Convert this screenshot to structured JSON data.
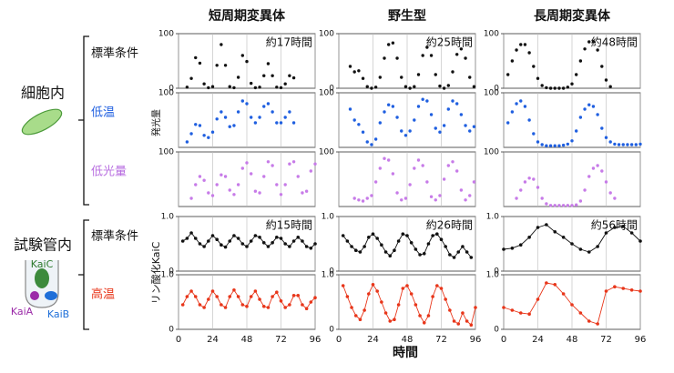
{
  "headers": [
    "短周期変異体",
    "野生型",
    "長周期変異体"
  ],
  "row_groups": [
    {
      "label": "細胞内",
      "rows": [
        "標準条件",
        "低温",
        "低光量"
      ]
    },
    {
      "label": "試験管内",
      "rows": [
        "標準条件",
        "高温"
      ]
    }
  ],
  "icon_labels": [
    "KaiC",
    "KaiA",
    "KaiB"
  ],
  "ylabels": [
    "発光量",
    "リン酸化KaiC"
  ],
  "xlabel": "時間",
  "chart_data": [
    {
      "type": "scatter",
      "color": "#111111",
      "annotation": "約17時間",
      "xlim": [
        0,
        96
      ],
      "xticks": [
        0,
        24,
        48,
        72,
        96
      ],
      "ylim": [
        0,
        100
      ],
      "yticks": [
        0,
        100
      ],
      "x": [
        6,
        9,
        12,
        15,
        18,
        21,
        24,
        27,
        30,
        33,
        36,
        39,
        42,
        45,
        48,
        51,
        54,
        57,
        60,
        63,
        66,
        69,
        72,
        75,
        78,
        81
      ],
      "values": [
        2,
        18,
        56,
        46,
        8,
        1,
        3,
        42,
        80,
        42,
        3,
        1,
        20,
        60,
        49,
        9,
        1,
        2,
        23,
        45,
        23,
        2,
        1,
        8,
        23,
        19
      ]
    },
    {
      "type": "scatter",
      "color": "#111111",
      "annotation": "約25時間",
      "xlim": [
        0,
        96
      ],
      "xticks": [
        0,
        24,
        48,
        72,
        96
      ],
      "ylim": [
        0,
        100
      ],
      "yticks": [
        0,
        100
      ],
      "x": [
        8,
        11,
        14,
        17,
        20,
        23,
        26,
        29,
        32,
        35,
        38,
        41,
        44,
        47,
        50,
        53,
        56,
        59,
        62,
        65,
        68,
        71,
        74,
        77,
        80,
        83,
        86,
        89,
        92,
        95
      ],
      "values": [
        40,
        30,
        32,
        18,
        3,
        0,
        2,
        20,
        55,
        80,
        83,
        55,
        20,
        3,
        0,
        3,
        25,
        60,
        75,
        60,
        25,
        4,
        0,
        5,
        30,
        62,
        72,
        55,
        20,
        3
      ]
    },
    {
      "type": "scatter",
      "color": "#111111",
      "annotation": "約48時間",
      "xlim": [
        0,
        96
      ],
      "xticks": [
        0,
        24,
        48,
        72,
        96
      ],
      "ylim": [
        0,
        100
      ],
      "yticks": [
        0,
        100
      ],
      "x": [
        3,
        6,
        9,
        12,
        15,
        18,
        21,
        24,
        27,
        30,
        33,
        36,
        39,
        42,
        45,
        48,
        51,
        54,
        57,
        60,
        63,
        66,
        69,
        72,
        75
      ],
      "values": [
        25,
        50,
        70,
        80,
        80,
        65,
        40,
        18,
        5,
        1,
        0,
        0,
        0,
        0,
        2,
        8,
        25,
        50,
        72,
        85,
        85,
        70,
        40,
        15,
        3
      ]
    },
    {
      "type": "scatter",
      "color": "#1f5fe0",
      "xlim": [
        0,
        96
      ],
      "xticks": [
        0,
        24,
        48,
        72,
        96
      ],
      "ylim": [
        0,
        100
      ],
      "yticks": [
        100
      ],
      "x": [
        6,
        9,
        12,
        15,
        18,
        21,
        24,
        27,
        30,
        33,
        36,
        39,
        42,
        45,
        48,
        51,
        54,
        57,
        60,
        63,
        66,
        69,
        72,
        75,
        78,
        81
      ],
      "values": [
        10,
        25,
        42,
        40,
        22,
        18,
        28,
        52,
        65,
        55,
        38,
        40,
        65,
        85,
        80,
        55,
        45,
        55,
        75,
        80,
        65,
        45,
        45,
        55,
        65,
        45
      ]
    },
    {
      "type": "scatter",
      "color": "#1f5fe0",
      "xlim": [
        0,
        96
      ],
      "xticks": [
        0,
        24,
        48,
        72,
        96
      ],
      "ylim": [
        0,
        100
      ],
      "yticks": [
        100
      ],
      "x": [
        8,
        11,
        14,
        17,
        20,
        23,
        26,
        29,
        32,
        35,
        38,
        41,
        44,
        47,
        50,
        53,
        56,
        59,
        62,
        65,
        68,
        71,
        74,
        77,
        80,
        83,
        86,
        89,
        92,
        95
      ],
      "values": [
        70,
        50,
        42,
        28,
        10,
        5,
        15,
        45,
        65,
        78,
        75,
        55,
        30,
        22,
        30,
        50,
        75,
        88,
        85,
        60,
        35,
        28,
        40,
        70,
        85,
        80,
        60,
        40,
        30,
        38
      ]
    },
    {
      "type": "scatter",
      "color": "#1f5fe0",
      "xlim": [
        0,
        96
      ],
      "xticks": [
        0,
        24,
        48,
        72,
        96
      ],
      "ylim": [
        0,
        100
      ],
      "yticks": [
        100
      ],
      "x": [
        3,
        6,
        9,
        12,
        15,
        18,
        21,
        24,
        27,
        30,
        33,
        36,
        39,
        42,
        45,
        48,
        51,
        54,
        57,
        60,
        63,
        66,
        69,
        72,
        75,
        78,
        81,
        84,
        87,
        90,
        93,
        96
      ],
      "values": [
        45,
        65,
        80,
        85,
        75,
        50,
        25,
        10,
        5,
        3,
        3,
        3,
        3,
        4,
        6,
        12,
        30,
        55,
        70,
        78,
        75,
        60,
        35,
        18,
        10,
        6,
        5,
        5,
        5,
        5,
        5,
        6
      ]
    },
    {
      "type": "scatter",
      "color": "#c77be8",
      "xlim": [
        0,
        96
      ],
      "xticks": [
        0,
        24,
        48,
        72,
        96
      ],
      "ylim": [
        0,
        100
      ],
      "yticks": [
        100
      ],
      "x": [
        9,
        12,
        15,
        18,
        21,
        24,
        27,
        30,
        33,
        36,
        39,
        42,
        45,
        48,
        51,
        54,
        57,
        60,
        63,
        66,
        69,
        72,
        75,
        78,
        81,
        84,
        87,
        90,
        93,
        96
      ],
      "values": [
        15,
        40,
        55,
        48,
        25,
        20,
        40,
        58,
        55,
        30,
        22,
        40,
        70,
        80,
        60,
        28,
        25,
        55,
        82,
        75,
        40,
        22,
        40,
        78,
        82,
        55,
        25,
        28,
        65,
        78
      ]
    },
    {
      "type": "scatter",
      "color": "#c77be8",
      "xlim": [
        0,
        96
      ],
      "xticks": [
        0,
        24,
        48,
        72,
        96
      ],
      "ylim": [
        0,
        100
      ],
      "yticks": [
        100
      ],
      "x": [
        11,
        14,
        17,
        20,
        23,
        26,
        29,
        32,
        35,
        38,
        41,
        44,
        47,
        50,
        53,
        56,
        59,
        62,
        65,
        68,
        71,
        74,
        77,
        80,
        83,
        86,
        89,
        92,
        95
      ],
      "values": [
        15,
        12,
        10,
        15,
        20,
        45,
        70,
        88,
        85,
        60,
        25,
        12,
        15,
        40,
        70,
        85,
        75,
        45,
        18,
        12,
        20,
        50,
        75,
        82,
        65,
        30,
        12,
        20,
        45
      ]
    },
    {
      "type": "scatter",
      "color": "#c77be8",
      "xlim": [
        0,
        96
      ],
      "xticks": [
        0,
        24,
        48,
        72,
        96
      ],
      "ylim": [
        0,
        100
      ],
      "yticks": [
        100
      ],
      "x": [
        9,
        12,
        15,
        18,
        21,
        24,
        27,
        30,
        33,
        36,
        39,
        42,
        45,
        48,
        51,
        54,
        57,
        60,
        63,
        66,
        69,
        72,
        75,
        78
      ],
      "values": [
        15,
        30,
        45,
        52,
        50,
        35,
        15,
        5,
        2,
        2,
        2,
        2,
        2,
        2,
        3,
        10,
        30,
        55,
        70,
        75,
        65,
        45,
        25,
        15
      ]
    },
    {
      "type": "line",
      "color": "#111111",
      "annotation": "約15時間",
      "xlim": [
        0,
        96
      ],
      "xticks": [
        0,
        24,
        48,
        72,
        96
      ],
      "ylim": [
        0,
        1
      ],
      "yticks": [
        0,
        {
          "value": 1,
          "label": "1.0"
        }
      ],
      "x": [
        3,
        6,
        9,
        12,
        15,
        18,
        21,
        24,
        27,
        30,
        33,
        36,
        39,
        42,
        45,
        48,
        51,
        54,
        57,
        60,
        63,
        66,
        69,
        72,
        75,
        78,
        81,
        84,
        87,
        90,
        93,
        96
      ],
      "values": [
        0.55,
        0.6,
        0.7,
        0.6,
        0.5,
        0.45,
        0.55,
        0.65,
        0.58,
        0.48,
        0.44,
        0.55,
        0.65,
        0.6,
        0.5,
        0.45,
        0.55,
        0.65,
        0.62,
        0.52,
        0.45,
        0.52,
        0.62,
        0.6,
        0.5,
        0.45,
        0.55,
        0.62,
        0.55,
        0.45,
        0.42,
        0.5
      ]
    },
    {
      "type": "line",
      "color": "#111111",
      "annotation": "約26時間",
      "xlim": [
        0,
        96
      ],
      "xticks": [
        0,
        24,
        48,
        72,
        96
      ],
      "ylim": [
        0,
        1
      ],
      "yticks": [
        0,
        {
          "value": 1,
          "label": "1.0"
        }
      ],
      "x": [
        3,
        6,
        9,
        12,
        15,
        18,
        21,
        24,
        27,
        30,
        33,
        36,
        39,
        42,
        45,
        48,
        51,
        54,
        57,
        60,
        63,
        66,
        69,
        72,
        75,
        78,
        81,
        84,
        87,
        90,
        93
      ],
      "values": [
        0.65,
        0.55,
        0.45,
        0.38,
        0.35,
        0.45,
        0.62,
        0.68,
        0.6,
        0.48,
        0.35,
        0.28,
        0.38,
        0.55,
        0.68,
        0.65,
        0.52,
        0.4,
        0.3,
        0.32,
        0.5,
        0.65,
        0.68,
        0.58,
        0.45,
        0.3,
        0.25,
        0.35,
        0.45,
        0.35,
        0.25
      ]
    },
    {
      "type": "line",
      "color": "#111111",
      "annotation": "約56時間",
      "xlim": [
        0,
        96
      ],
      "xticks": [
        0,
        24,
        48,
        72,
        96
      ],
      "ylim": [
        0,
        1
      ],
      "yticks": [
        0,
        {
          "value": 1,
          "label": "1.0"
        }
      ],
      "x": [
        0,
        6,
        12,
        18,
        24,
        30,
        36,
        42,
        48,
        54,
        60,
        66,
        72,
        78,
        84,
        90,
        96
      ],
      "values": [
        0.4,
        0.42,
        0.48,
        0.62,
        0.8,
        0.85,
        0.72,
        0.62,
        0.5,
        0.4,
        0.35,
        0.45,
        0.7,
        0.8,
        0.82,
        0.7,
        0.55
      ]
    },
    {
      "type": "line",
      "color": "#e8361a",
      "xlim": [
        0,
        96
      ],
      "xticks": [
        0,
        24,
        48,
        72,
        96
      ],
      "ylim": [
        0,
        1
      ],
      "yticks": [
        0,
        {
          "value": 1,
          "label": "1.0"
        }
      ],
      "x": [
        3,
        6,
        9,
        12,
        15,
        18,
        21,
        24,
        27,
        30,
        33,
        36,
        39,
        42,
        45,
        48,
        51,
        54,
        57,
        60,
        63,
        66,
        69,
        72,
        75,
        78,
        81,
        84,
        87,
        90,
        93,
        96
      ],
      "values": [
        0.45,
        0.6,
        0.7,
        0.6,
        0.45,
        0.4,
        0.55,
        0.7,
        0.6,
        0.45,
        0.4,
        0.6,
        0.72,
        0.6,
        0.45,
        0.42,
        0.6,
        0.7,
        0.55,
        0.42,
        0.4,
        0.6,
        0.68,
        0.52,
        0.4,
        0.45,
        0.62,
        0.62,
        0.45,
        0.38,
        0.5,
        0.58
      ]
    },
    {
      "type": "line",
      "color": "#e8361a",
      "xlim": [
        0,
        96
      ],
      "xticks": [
        0,
        24,
        48,
        72,
        96
      ],
      "ylim": [
        0,
        1
      ],
      "yticks": [
        0,
        {
          "value": 1,
          "label": "1.0"
        }
      ],
      "x": [
        3,
        6,
        9,
        12,
        15,
        18,
        21,
        24,
        27,
        30,
        33,
        36,
        39,
        42,
        45,
        48,
        51,
        54,
        57,
        60,
        63,
        66,
        69,
        72,
        75,
        78,
        81,
        84,
        87,
        90,
        93,
        96
      ],
      "values": [
        0.8,
        0.6,
        0.4,
        0.25,
        0.18,
        0.35,
        0.65,
        0.82,
        0.7,
        0.5,
        0.3,
        0.15,
        0.18,
        0.45,
        0.75,
        0.8,
        0.65,
        0.45,
        0.25,
        0.12,
        0.25,
        0.6,
        0.8,
        0.75,
        0.55,
        0.35,
        0.15,
        0.1,
        0.3,
        0.15,
        0.08,
        0.4
      ]
    },
    {
      "type": "line",
      "color": "#e8361a",
      "xlim": [
        0,
        96
      ],
      "xticks": [
        0,
        24,
        48,
        72,
        96
      ],
      "ylim": [
        0,
        1
      ],
      "yticks": [
        0,
        {
          "value": 1,
          "label": "1.0"
        }
      ],
      "x": [
        0,
        6,
        12,
        18,
        24,
        30,
        36,
        42,
        48,
        54,
        60,
        66,
        72,
        78,
        84,
        90,
        96
      ],
      "values": [
        0.4,
        0.35,
        0.3,
        0.28,
        0.55,
        0.85,
        0.82,
        0.65,
        0.45,
        0.3,
        0.15,
        0.1,
        0.7,
        0.78,
        0.75,
        0.72,
        0.7
      ]
    }
  ]
}
